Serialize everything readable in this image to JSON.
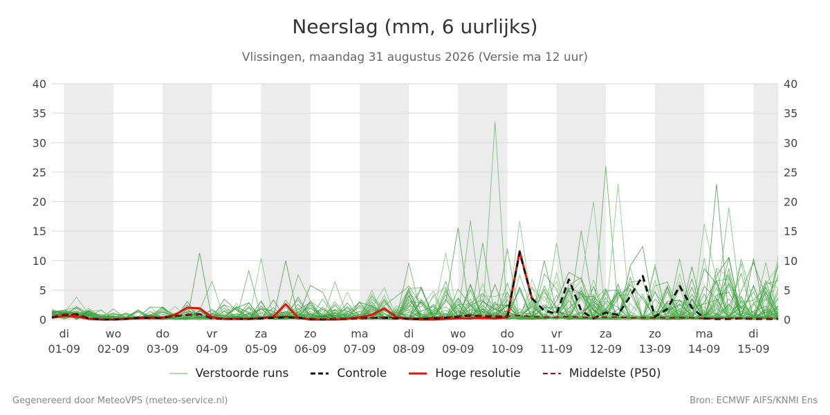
{
  "header": {
    "title": "Neerslag (mm, 6 uurlijks)",
    "subtitle": "Vlissingen, maandag 31 augustus 2026 (Versie ma 12 uur)"
  },
  "footer": {
    "left": "Gegenereerd door MeteoVPS (meteo-service.nl)",
    "right": "Bron: ECMWF AIFS/KNMI Ens"
  },
  "legend": [
    {
      "label": "Verstoorde runs",
      "color": "#5cb85c",
      "style": "thin-solid"
    },
    {
      "label": "Controle",
      "color": "#111111",
      "style": "dashed"
    },
    {
      "label": "Hoge resolutie",
      "color": "#e3120b",
      "style": "solid"
    },
    {
      "label": "Middelste (P50)",
      "color": "#a01010",
      "style": "dashed"
    }
  ],
  "chart_data": {
    "type": "line",
    "ylim": [
      0,
      40
    ],
    "y_ticks": [
      0,
      5,
      10,
      15,
      20,
      25,
      30,
      35,
      40
    ],
    "x_unit": "days since 01-09 (6-hourly steps)",
    "xlim": [
      -0.25,
      14.5
    ],
    "x_ticks": [
      {
        "x": 0,
        "day": "di",
        "date": "01-09"
      },
      {
        "x": 1,
        "day": "wo",
        "date": "02-09"
      },
      {
        "x": 2,
        "day": "do",
        "date": "03-09"
      },
      {
        "x": 3,
        "day": "vr",
        "date": "04-09"
      },
      {
        "x": 4,
        "day": "za",
        "date": "05-09"
      },
      {
        "x": 5,
        "day": "zo",
        "date": "06-09"
      },
      {
        "x": 6,
        "day": "ma",
        "date": "07-09"
      },
      {
        "x": 7,
        "day": "di",
        "date": "08-09"
      },
      {
        "x": 8,
        "day": "wo",
        "date": "09-09"
      },
      {
        "x": 9,
        "day": "do",
        "date": "10-09"
      },
      {
        "x": 10,
        "day": "vr",
        "date": "11-09"
      },
      {
        "x": 11,
        "day": "za",
        "date": "12-09"
      },
      {
        "x": 12,
        "day": "zo",
        "date": "13-09"
      },
      {
        "x": 13,
        "day": "ma",
        "date": "14-09"
      },
      {
        "x": 14,
        "day": "di",
        "date": "15-09"
      }
    ],
    "shaded_days": [
      0,
      2,
      4,
      6,
      8,
      10,
      12,
      14
    ],
    "grid": true,
    "series": [
      {
        "name": "Hoge resolutie",
        "color": "#e3120b",
        "x": [
          -0.25,
          0,
          0.25,
          0.5,
          0.75,
          1,
          1.25,
          1.5,
          1.75,
          2,
          2.25,
          2.5,
          2.75,
          3,
          3.25,
          3.5,
          3.75,
          4,
          4.25,
          4.5,
          4.75,
          5,
          5.25,
          5.5,
          5.75,
          6,
          6.25,
          6.5,
          6.75,
          7,
          7.25,
          7.5,
          7.75,
          8,
          8.25,
          8.5,
          8.75,
          9,
          9.25,
          9.5
        ],
        "y": [
          0.3,
          0.6,
          0.5,
          0.1,
          0,
          0,
          0.1,
          0.2,
          0.3,
          0.3,
          0.8,
          2.0,
          1.9,
          0.4,
          0.1,
          0.1,
          0.1,
          0.2,
          0.5,
          2.6,
          0.3,
          0,
          0,
          0,
          0.1,
          0.4,
          0.8,
          1.9,
          0.4,
          0.1,
          0,
          0,
          0.1,
          0.2,
          0.2,
          0.3,
          0.2,
          0.4,
          11.6,
          3.5
        ]
      },
      {
        "name": "Controle",
        "color": "#111111",
        "x": [
          -0.25,
          0,
          0.25,
          0.5,
          0.75,
          1,
          1.25,
          1.5,
          1.75,
          2,
          2.25,
          2.5,
          2.75,
          3,
          3.25,
          3.5,
          3.75,
          4,
          4.25,
          4.5,
          4.75,
          5,
          5.25,
          5.5,
          5.75,
          6,
          6.25,
          6.5,
          6.75,
          7,
          7.25,
          7.5,
          7.75,
          8,
          8.25,
          8.5,
          8.75,
          9,
          9.25,
          9.5,
          9.75,
          10,
          10.25,
          10.5,
          10.75,
          11,
          11.25,
          11.5,
          11.75,
          12,
          12.25,
          12.5,
          12.75,
          13,
          13.25,
          13.5,
          13.75,
          14,
          14.25,
          14.5
        ],
        "y": [
          0.4,
          0.8,
          0.9,
          0.2,
          0,
          0,
          0.1,
          0.3,
          0.3,
          0.3,
          0.6,
          0.8,
          0.9,
          0.2,
          0.1,
          0.1,
          0.1,
          0.2,
          0.3,
          0.4,
          0.3,
          0.1,
          0,
          0.1,
          0.1,
          0.2,
          0.3,
          0.3,
          0.2,
          0.1,
          0.1,
          0.2,
          0.3,
          0.5,
          0.7,
          0.6,
          0.5,
          0.5,
          11.4,
          3.6,
          1.5,
          1.0,
          6.8,
          1.5,
          0.2,
          1.2,
          0.8,
          4.0,
          7.4,
          0.5,
          1.8,
          5.7,
          2.0,
          0.2,
          0.1,
          0.1,
          0.2,
          0.1,
          0.1,
          0.1
        ]
      },
      {
        "name": "Middelste (P50)",
        "color": "#a01010",
        "x": [
          -0.25,
          0,
          0.25,
          0.5,
          0.75,
          1,
          1.25,
          1.5,
          1.75,
          2,
          2.25,
          2.5,
          2.75,
          3,
          3.25,
          3.5,
          3.75,
          4,
          4.25,
          4.5,
          4.75,
          5,
          5.25,
          5.5,
          5.75,
          6,
          6.25,
          6.5,
          6.75,
          7,
          7.25,
          7.5,
          7.75,
          8,
          8.25,
          8.5,
          8.75,
          9,
          9.25,
          9.5,
          9.75,
          10,
          10.25,
          10.5,
          10.75,
          11,
          11.25,
          11.5,
          11.75,
          12,
          12.25,
          12.5,
          12.75,
          13,
          13.25,
          13.5,
          13.75,
          14,
          14.25,
          14.5
        ],
        "y": [
          0.5,
          0.9,
          0.8,
          0.2,
          0,
          0,
          0.1,
          0.3,
          0.4,
          0.4,
          0.6,
          0.9,
          0.8,
          0.3,
          0.1,
          0.1,
          0.2,
          0.3,
          0.4,
          0.5,
          0.3,
          0.1,
          0.1,
          0.1,
          0.1,
          0.2,
          0.3,
          0.4,
          0.3,
          0.2,
          0.2,
          0.3,
          0.4,
          0.6,
          0.8,
          0.7,
          0.6,
          0.6,
          0.7,
          0.5,
          0.4,
          0.4,
          0.5,
          0.4,
          0.3,
          0.4,
          0.4,
          0.3,
          0.3,
          0.3,
          0.3,
          0.3,
          0.3,
          0.2,
          0.2,
          0.2,
          0.2,
          0.2,
          0.2,
          0.2
        ]
      }
    ],
    "ensemble": {
      "name": "Verstoorde runs",
      "color": "#3fa13f",
      "count": 50,
      "seed": 7,
      "x_start": -0.25,
      "x_end": 14.5,
      "step": 0.25,
      "peaks": [
        {
          "x": 0.25,
          "y": 3.8
        },
        {
          "x": 2.75,
          "y": 11.3
        },
        {
          "x": 3.0,
          "y": 6.5
        },
        {
          "x": 3.75,
          "y": 8.3
        },
        {
          "x": 4.0,
          "y": 10.4
        },
        {
          "x": 4.5,
          "y": 10.0
        },
        {
          "x": 4.75,
          "y": 7.6
        },
        {
          "x": 5.0,
          "y": 5.8
        },
        {
          "x": 5.5,
          "y": 6.4
        },
        {
          "x": 7.0,
          "y": 9.6
        },
        {
          "x": 7.75,
          "y": 11.3
        },
        {
          "x": 8.0,
          "y": 15.6
        },
        {
          "x": 8.25,
          "y": 16.8
        },
        {
          "x": 8.5,
          "y": 13.0
        },
        {
          "x": 8.75,
          "y": 33.6
        },
        {
          "x": 9.0,
          "y": 12.0
        },
        {
          "x": 9.25,
          "y": 16.7
        },
        {
          "x": 9.75,
          "y": 10.0
        },
        {
          "x": 10.0,
          "y": 13.0
        },
        {
          "x": 10.5,
          "y": 15.1
        },
        {
          "x": 10.75,
          "y": 20.0
        },
        {
          "x": 11.0,
          "y": 26.0
        },
        {
          "x": 11.25,
          "y": 23.0
        },
        {
          "x": 11.75,
          "y": 12.4
        },
        {
          "x": 12.0,
          "y": 8.9
        },
        {
          "x": 12.5,
          "y": 10.3
        },
        {
          "x": 13.0,
          "y": 16.2
        },
        {
          "x": 13.25,
          "y": 23.0
        },
        {
          "x": 13.5,
          "y": 19.0
        },
        {
          "x": 14.0,
          "y": 9.7
        },
        {
          "x": 14.5,
          "y": 9.0
        }
      ]
    }
  }
}
